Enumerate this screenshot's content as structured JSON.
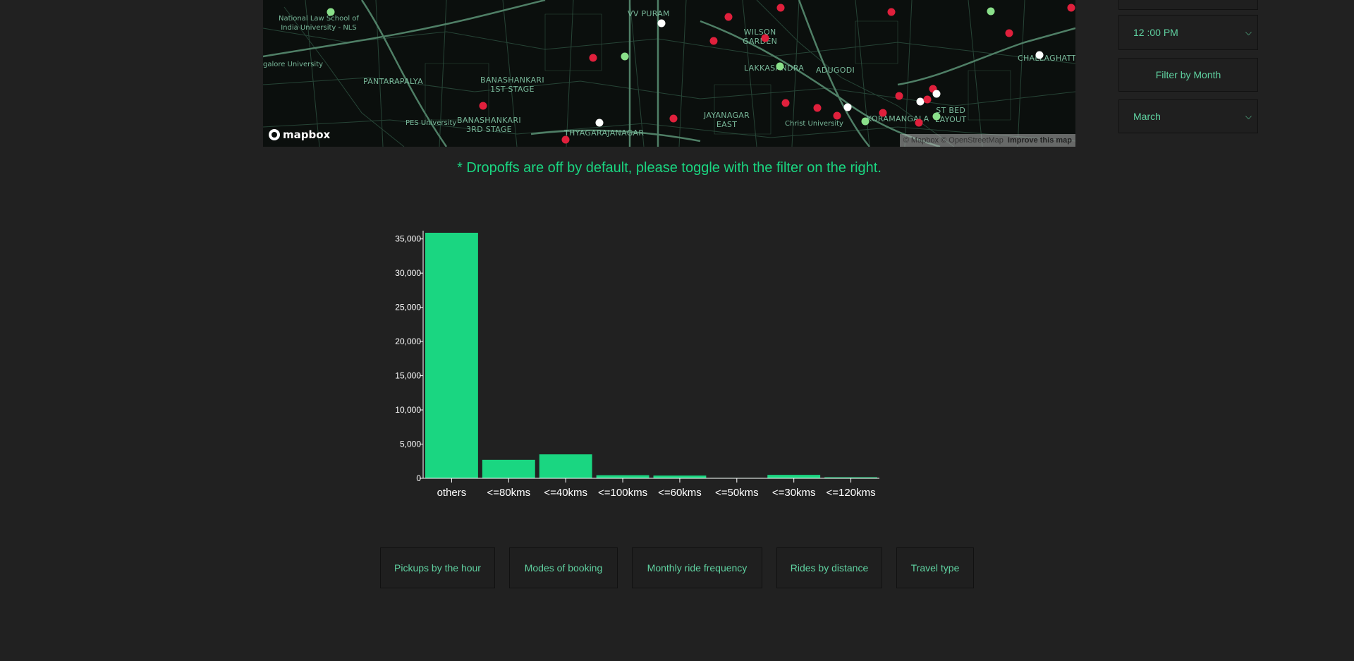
{
  "map": {
    "labels": [
      "National Law School of\nIndia University - NLS",
      "galore University",
      "PANTARAPALYA",
      "BANASHANKARI\n1ST STAGE",
      "BANASHANKARI\n3RD STAGE",
      "PES University",
      "THYAGARAJANAGAR",
      "VV PURAM",
      "WILSON\nGARDEN",
      "LAKKASANDRA",
      "ADUGODI",
      "JAYANAGAR\nEAST",
      "Christ University",
      "KORAMANGALA",
      "ST BED\nLAYOUT",
      "CHALLAGHATT"
    ],
    "logo_text": "mapbox",
    "attribution": "© Mapbox © OpenStreetMap",
    "improve_link": "Improve this map"
  },
  "notice": "* Dropoffs are off by default, please toggle with the filter on the right.",
  "sidebar": {
    "time_select": "12 :00 PM",
    "filter_month_button": "Filter by Month",
    "month_select": "March"
  },
  "chart_data": {
    "type": "bar",
    "categories": [
      "others",
      "<=80kms",
      "<=40kms",
      "<=100kms",
      "<=60kms",
      "<=50kms",
      "<=30kms",
      "<=120kms"
    ],
    "values": [
      35900,
      2700,
      3500,
      450,
      400,
      60,
      500,
      150
    ],
    "ylim": [
      0,
      36000
    ],
    "yticks": [
      0,
      5000,
      10000,
      15000,
      20000,
      25000,
      30000,
      35000
    ],
    "ytick_labels": [
      "0",
      "5,000",
      "10,000",
      "15,000",
      "20,000",
      "25,000",
      "30,000",
      "35,000"
    ],
    "bar_color": "#1ad681",
    "axis_color": "#ffffff"
  },
  "tabs": [
    {
      "label": "Pickups by the hour"
    },
    {
      "label": "Modes of booking"
    },
    {
      "label": "Monthly ride frequency"
    },
    {
      "label": "Rides by distance"
    },
    {
      "label": "Travel type"
    }
  ]
}
